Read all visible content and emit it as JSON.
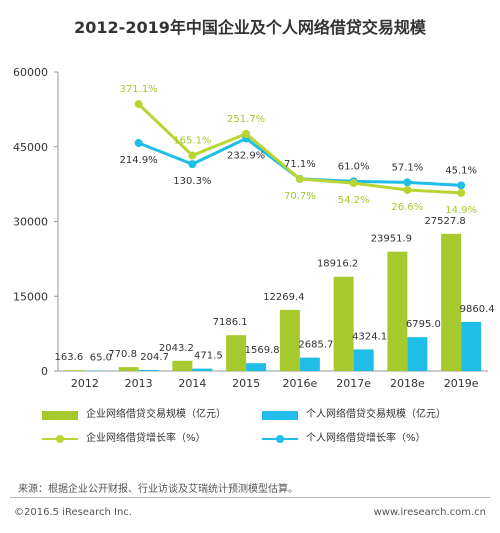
{
  "title": "2012-2019年中国企业及个人网络借贷交易规模",
  "chart_data": {
    "type": "bar",
    "categories": [
      "2012",
      "2013",
      "2014",
      "2015",
      "2016e",
      "2017e",
      "2018e",
      "2019e"
    ],
    "yticks": [
      "60000",
      "45000",
      "30000",
      "15000",
      "0"
    ],
    "ylim": [
      0,
      60000
    ],
    "rate_ylim": [
      -700,
      500
    ],
    "series": [
      {
        "name": "企业网络借贷交易规模（亿元）",
        "kind": "bar",
        "color": "#a6c92e",
        "values": [
          163.6,
          770.8,
          2043.2,
          7186.1,
          12269.4,
          18916.2,
          23951.9,
          27527.8
        ],
        "labels": [
          "163.6",
          "770.8",
          "2043.2",
          "7186.1",
          "12269.4",
          "18916.2",
          "23951.9",
          "27527.8"
        ]
      },
      {
        "name": "个人网络借贷交易规模（亿元）",
        "kind": "bar",
        "color": "#1fbde8",
        "values": [
          65.0,
          204.7,
          471.5,
          1569.8,
          2685.7,
          4324.1,
          6795.0,
          9860.4
        ],
        "labels": [
          "65.0",
          "204.7",
          "471.5",
          "1569.8",
          "2685.7",
          "4324.1",
          "6795.0",
          "9860.4"
        ]
      },
      {
        "name": "企业网络借贷增长率（%）",
        "kind": "line",
        "color": "#b9d433",
        "values": [
          null,
          371.1,
          165.1,
          251.7,
          70.7,
          54.2,
          26.6,
          14.9
        ],
        "labels": [
          "",
          "371.1%",
          "165.1%",
          "251.7%",
          "70.7%",
          "54.2%",
          "26.6%",
          "14.9%"
        ]
      },
      {
        "name": "个人网络借贷增长率（%）",
        "kind": "line",
        "color": "#1fbde8",
        "values": [
          null,
          214.9,
          130.3,
          232.9,
          71.1,
          61.0,
          57.1,
          45.1
        ],
        "labels": [
          "",
          "214.9%",
          "130.3%",
          "232.9%",
          "71.1%",
          "61.0%",
          "57.1%",
          "45.1%"
        ]
      }
    ]
  },
  "legend": {
    "items": [
      "企业网络借贷交易规模（亿元）",
      "个人网络借贷交易规模（亿元）",
      "企业网络借贷增长率（%）",
      "个人网络借贷增长率（%）"
    ]
  },
  "source": "来源：根据企业公开财报、行业访谈及艾瑞统计预测模型估算。",
  "footer": {
    "copyright": "©2016.5 iResearch Inc.",
    "website": "www.iresearch.com.cn"
  },
  "colors": {
    "enterprise": "#a6c92e",
    "personal": "#1fbde8",
    "enterprise_line": "#b9d433"
  }
}
